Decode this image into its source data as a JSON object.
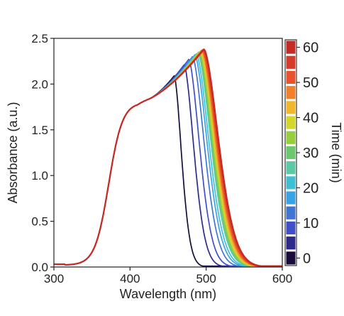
{
  "chart_data": {
    "type": "line",
    "title": "",
    "xlabel": "Wavelength (nm)",
    "ylabel": "Absorbance (a.u.)",
    "xlim": [
      300,
      600
    ],
    "ylim": [
      0.0,
      2.5
    ],
    "x_ticks": [
      300,
      400,
      500,
      600
    ],
    "y_ticks": [
      "0.0",
      "0.5",
      "1.0",
      "1.5",
      "2.0",
      "2.5"
    ],
    "grid": false,
    "legend": "none",
    "colorbar": {
      "label": "Time (min)",
      "ticks": [
        0,
        10,
        20,
        30,
        40,
        50,
        60
      ],
      "range": [
        0,
        60
      ],
      "colors": [
        "#1a0b3d",
        "#2c2b8c",
        "#3f4fc7",
        "#3f76d4",
        "#3aa3e6",
        "#3fbfd4",
        "#5cc9a5",
        "#6cc86f",
        "#97ce3d",
        "#d3d62b",
        "#f2b62a",
        "#f47f2a",
        "#e9522a",
        "#d63a28",
        "#c62a24"
      ]
    },
    "series": [
      {
        "time": 0,
        "color": "#1a0b3d",
        "peak_wavelength": 458,
        "peak_absorbance": 2.09
      },
      {
        "time": 4,
        "color": "#2c2b8c",
        "peak_wavelength": 471,
        "peak_absorbance": 2.21
      },
      {
        "time": 8,
        "color": "#3f4fc7",
        "peak_wavelength": 477,
        "peak_absorbance": 2.27
      },
      {
        "time": 12,
        "color": "#3f76d4",
        "peak_wavelength": 482,
        "peak_absorbance": 2.3
      },
      {
        "time": 16,
        "color": "#3aa3e6",
        "peak_wavelength": 485,
        "peak_absorbance": 2.32
      },
      {
        "time": 20,
        "color": "#3fbfd4",
        "peak_wavelength": 487,
        "peak_absorbance": 2.33
      },
      {
        "time": 24,
        "color": "#5cc9a5",
        "peak_wavelength": 489,
        "peak_absorbance": 2.34
      },
      {
        "time": 28,
        "color": "#6cc86f",
        "peak_wavelength": 490,
        "peak_absorbance": 2.35
      },
      {
        "time": 32,
        "color": "#97ce3d",
        "peak_wavelength": 491,
        "peak_absorbance": 2.35
      },
      {
        "time": 36,
        "color": "#d3d62b",
        "peak_wavelength": 492,
        "peak_absorbance": 2.36
      },
      {
        "time": 40,
        "color": "#f2b62a",
        "peak_wavelength": 493,
        "peak_absorbance": 2.36
      },
      {
        "time": 44,
        "color": "#f47f2a",
        "peak_wavelength": 494,
        "peak_absorbance": 2.37
      },
      {
        "time": 48,
        "color": "#e9522a",
        "peak_wavelength": 495,
        "peak_absorbance": 2.37
      },
      {
        "time": 52,
        "color": "#d63a28",
        "peak_wavelength": 496,
        "peak_absorbance": 2.38
      },
      {
        "time": 56,
        "color": "#c62a24",
        "peak_wavelength": 497,
        "peak_absorbance": 2.38
      }
    ]
  }
}
